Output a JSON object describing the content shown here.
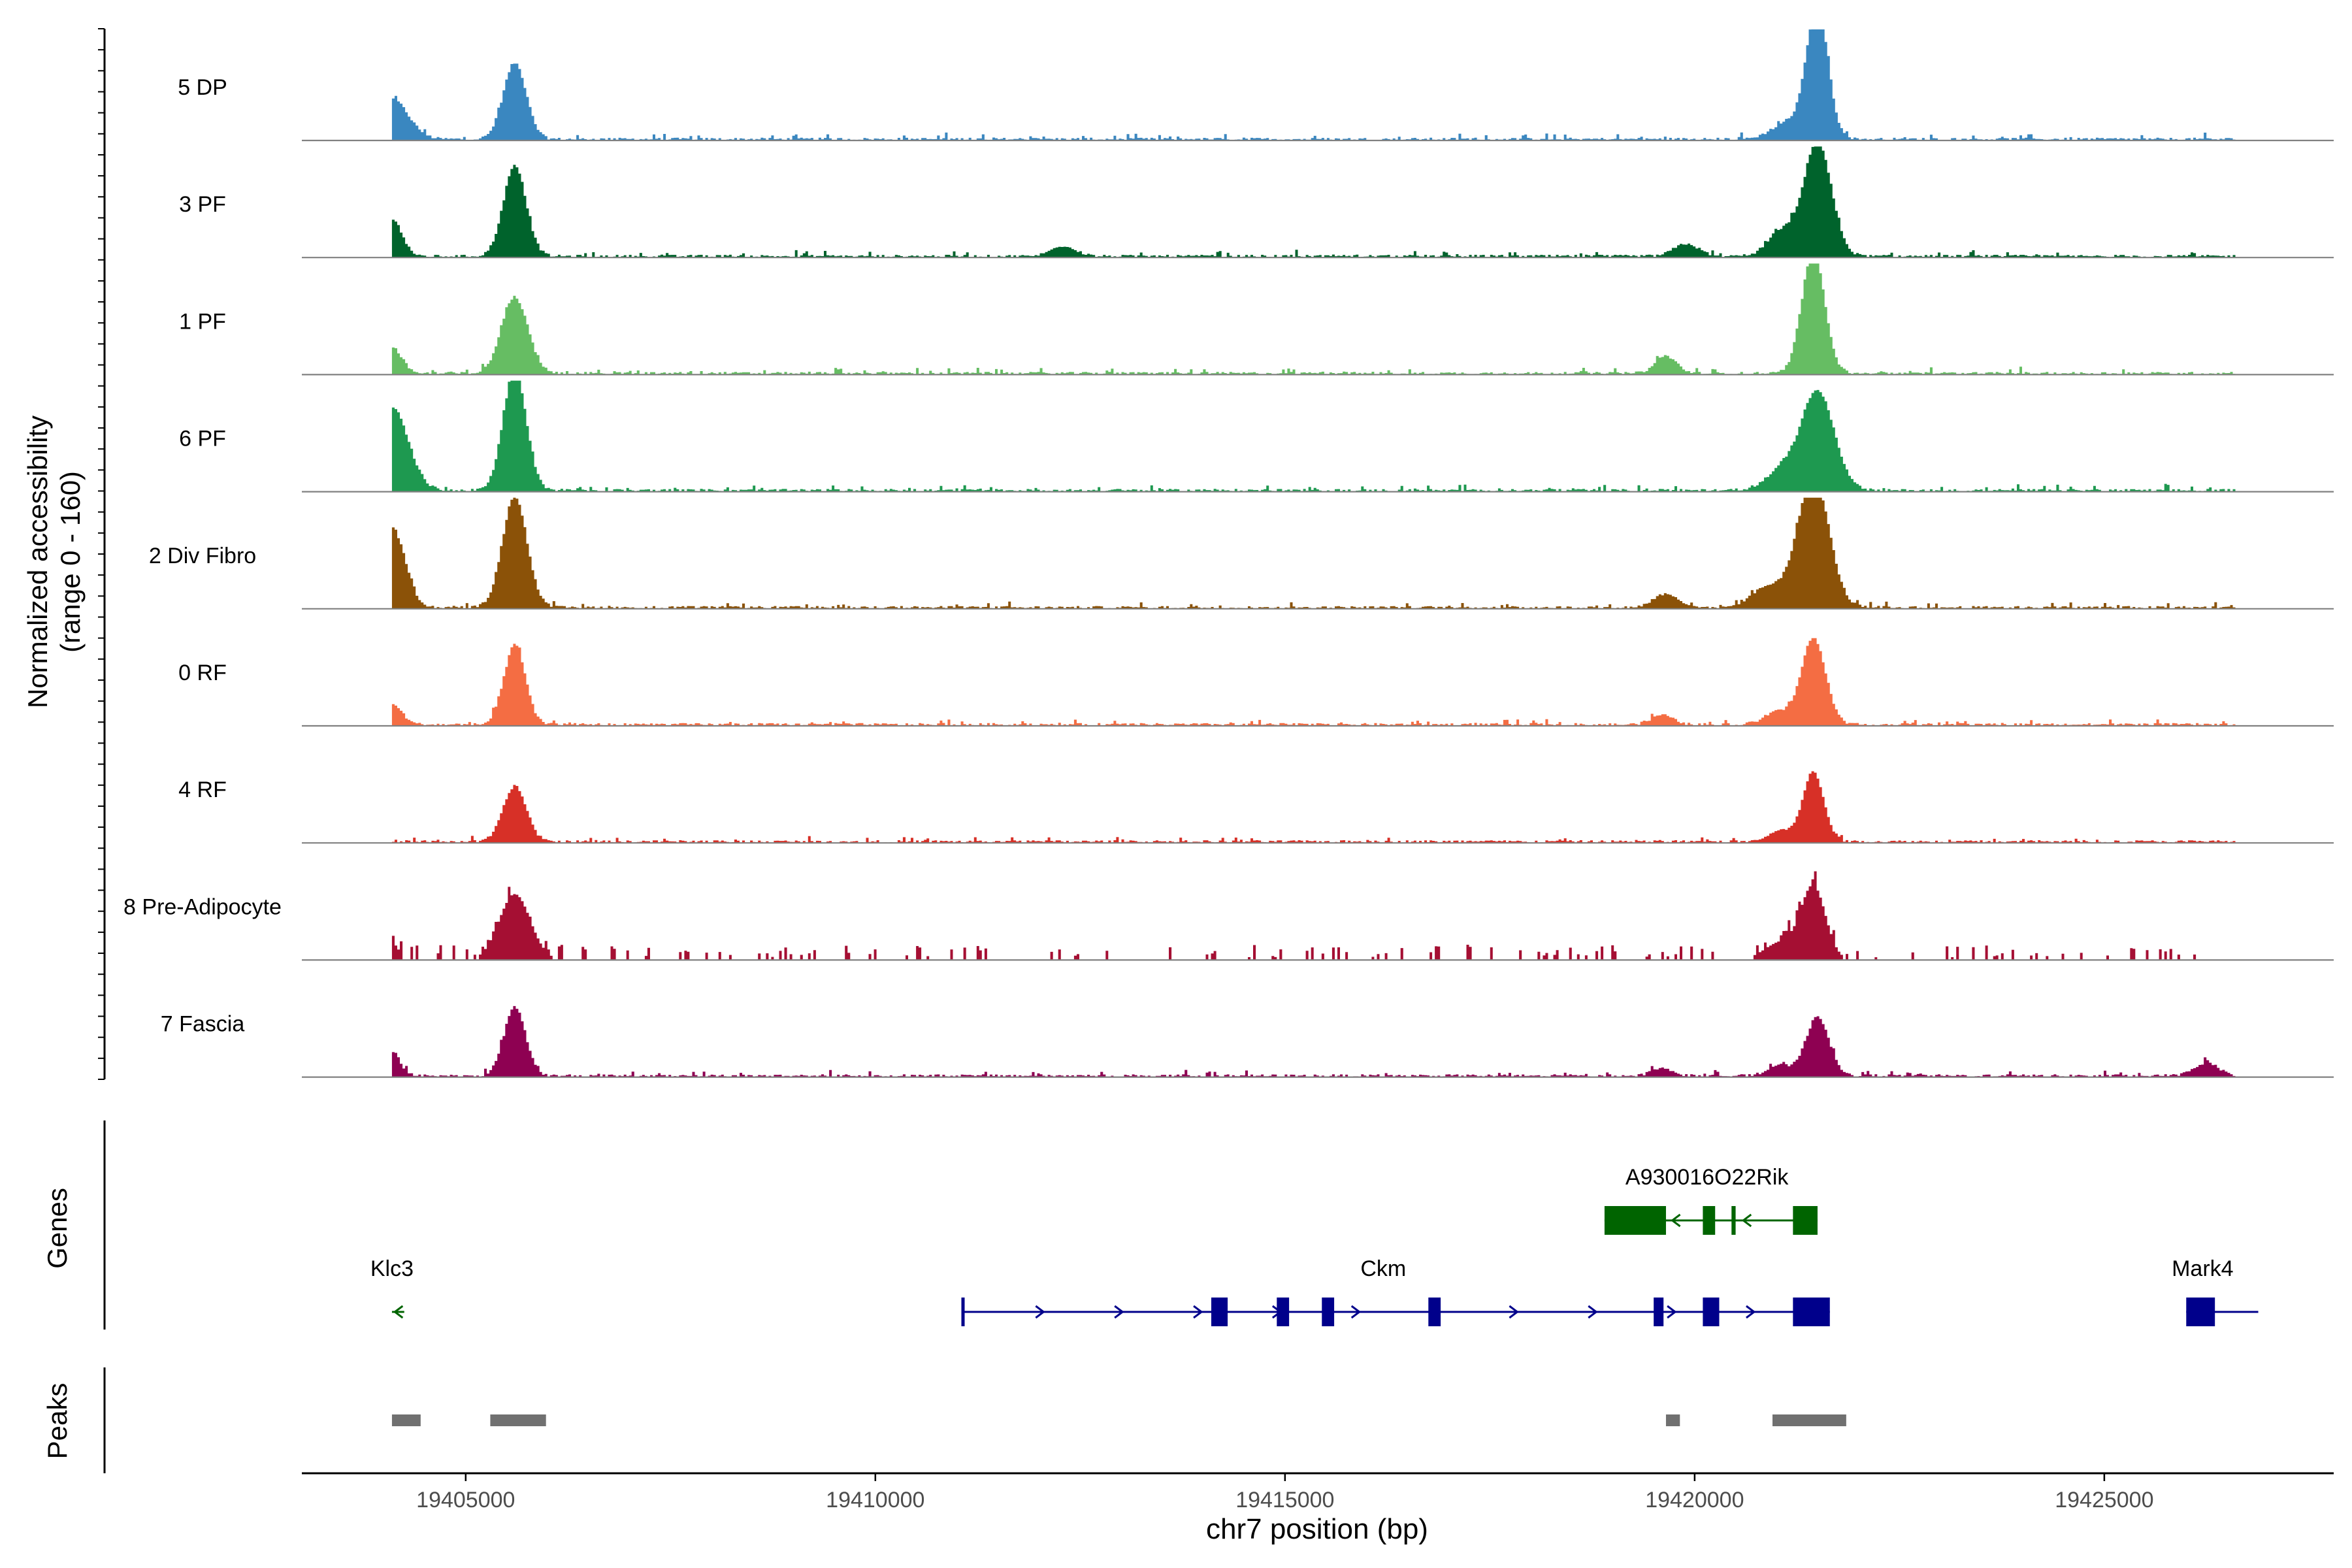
{
  "chart_data": {
    "type": "area",
    "title": "",
    "xlabel": "chr7 position (bp)",
    "ylabel_line1": "Normalized accessibility",
    "ylabel_line2": "(range 0 - 160)",
    "ylim": [
      0,
      160
    ],
    "xlim": [
      19403000,
      19427800
    ],
    "x_ticks": [
      19405000,
      19410000,
      19415000,
      19420000,
      19425000
    ],
    "x_tick_labels": [
      "19405000",
      "19410000",
      "19415000",
      "19420000",
      "19425000"
    ],
    "x_start": 19404100,
    "x_end": 19426600,
    "genes_label": "Genes",
    "peaks_label": "Peaks",
    "colors": {
      "axis": "#000000",
      "baseline": "#808080",
      "gene_plus": "#00008B",
      "gene_minus": "#006400",
      "peak": "#707070"
    },
    "series": [
      {
        "name": "5 DP",
        "color": "#3A87C0",
        "sparse": false,
        "peaks": [
          [
            19404100,
            58,
            200
          ],
          [
            19405600,
            110,
            140
          ],
          [
            19421500,
            190,
            130
          ],
          [
            19421150,
            25,
            200
          ]
        ]
      },
      {
        "name": "3 PF",
        "color": "#00632C",
        "sparse": false,
        "peaks": [
          [
            19404100,
            55,
            120
          ],
          [
            19405600,
            130,
            140
          ],
          [
            19421500,
            165,
            170
          ],
          [
            19421050,
            35,
            160
          ],
          [
            19419900,
            18,
            150
          ],
          [
            19412300,
            15,
            150
          ]
        ]
      },
      {
        "name": "1 PF",
        "color": "#66BD63",
        "sparse": false,
        "peaks": [
          [
            19404100,
            38,
            120
          ],
          [
            19405600,
            110,
            160
          ],
          [
            19421450,
            175,
            140
          ],
          [
            19419650,
            25,
            130
          ]
        ]
      },
      {
        "name": "6 PF",
        "color": "#1E9950",
        "sparse": false,
        "peaks": [
          [
            19404100,
            120,
            200
          ],
          [
            19405600,
            175,
            140
          ],
          [
            19421500,
            145,
            200
          ],
          [
            19421050,
            28,
            180
          ]
        ]
      },
      {
        "name": "2 Div Fibro",
        "color": "#8B5208",
        "sparse": false,
        "peaks": [
          [
            19404100,
            115,
            160
          ],
          [
            19405600,
            160,
            150
          ],
          [
            19421450,
            190,
            190
          ],
          [
            19420900,
            30,
            200
          ],
          [
            19419650,
            20,
            150
          ]
        ]
      },
      {
        "name": "0 RF",
        "color": "#F46D43",
        "sparse": false,
        "peaks": [
          [
            19404100,
            30,
            120
          ],
          [
            19405600,
            115,
            130
          ],
          [
            19421450,
            125,
            150
          ],
          [
            19421000,
            18,
            150
          ],
          [
            19419600,
            14,
            130
          ]
        ]
      },
      {
        "name": "4 RF",
        "color": "#D73027",
        "sparse": false,
        "peaks": [
          [
            19405600,
            80,
            140
          ],
          [
            19421450,
            100,
            130
          ],
          [
            19421050,
            15,
            150
          ]
        ]
      },
      {
        "name": "8 Pre-Adipocyte",
        "color": "#A50F33",
        "sparse": true,
        "peaks": [
          [
            19404100,
            25,
            80
          ],
          [
            19405600,
            95,
            190
          ],
          [
            19421450,
            105,
            150
          ],
          [
            19421050,
            25,
            200
          ]
        ]
      },
      {
        "name": "7 Fascia",
        "color": "#8E0152",
        "sparse": false,
        "peaks": [
          [
            19404100,
            35,
            100
          ],
          [
            19405600,
            100,
            130
          ],
          [
            19421500,
            85,
            140
          ],
          [
            19421050,
            14,
            150
          ],
          [
            19419600,
            12,
            120
          ],
          [
            19426250,
            18,
            150
          ]
        ]
      }
    ],
    "genes": [
      {
        "name": "A930016O22Rik",
        "strand": "-",
        "row": 0,
        "start": 19418900,
        "end": 19421500,
        "label_pos": 19420150,
        "exons": [
          [
            19418900,
            19419650
          ],
          [
            19420100,
            19420250
          ],
          [
            19420450,
            19420500
          ],
          [
            19421200,
            19421500
          ]
        ]
      },
      {
        "name": "Ckm",
        "strand": "+",
        "row": 1,
        "start": 19411050,
        "end": 19421650,
        "label_pos": 19416200,
        "exons": [
          [
            19411050,
            19411080
          ],
          [
            19414100,
            19414300
          ],
          [
            19414900,
            19415050
          ],
          [
            19415450,
            19415600
          ],
          [
            19416750,
            19416900
          ],
          [
            19419500,
            19419620
          ],
          [
            19420100,
            19420300
          ],
          [
            19421200,
            19421650
          ]
        ]
      },
      {
        "name": "Klc3",
        "strand": "-",
        "row": 1,
        "start": 19404100,
        "end": 19404250,
        "label_pos": 19404100,
        "exons": []
      },
      {
        "name": "Mark4",
        "strand": "+",
        "row": 1,
        "start": 19426000,
        "end": 19426600,
        "label_pos": 19426200,
        "exons": [
          [
            19426000,
            19426350
          ]
        ]
      }
    ],
    "peak_regions": [
      [
        19404100,
        19404450
      ],
      [
        19405300,
        19405980
      ],
      [
        19419650,
        19419820
      ],
      [
        19420950,
        19421850
      ]
    ]
  }
}
